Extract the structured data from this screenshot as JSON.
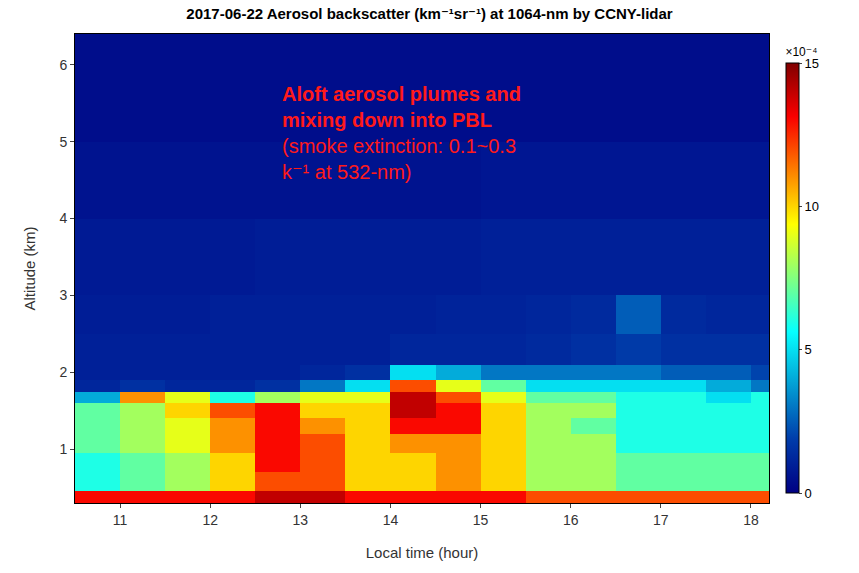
{
  "chart_data": {
    "type": "heatmap",
    "title": "2017-06-22 Aerosol backscatter (km⁻¹sr⁻¹) at 1064-nm by CCNY-lidar",
    "x_label": "Local time (hour)",
    "y_label": "Altitude (km)",
    "annotations": [
      [
        "Aloft aerosol plumes and",
        "mixing down into PBL"
      ],
      [
        "(smoke extinction: 0.1~0.3",
        "k⁻¹ at 532-nm)"
      ]
    ],
    "colorbar_label": "×10⁻⁴",
    "color": "Jet",
    "grid": false,
    "x": [
      10.5,
      11,
      11.5,
      12,
      12.5,
      13,
      13.5,
      14,
      14.5,
      15,
      15.5,
      16,
      16.5,
      17,
      17.5,
      18,
      18.2
    ],
    "y": [
      0.3,
      0.45,
      0.7,
      0.95,
      1.2,
      1.4,
      1.6,
      1.75,
      1.9,
      2.1,
      2.5,
      3,
      4,
      5,
      6.4
    ],
    "z": [
      [
        13,
        13,
        13,
        13,
        14,
        14,
        13,
        13,
        13,
        13,
        12,
        12,
        12,
        12,
        12,
        12
      ],
      [
        6,
        7,
        8,
        10,
        12,
        12,
        10,
        10,
        11,
        10,
        8,
        8,
        7,
        7,
        7,
        7
      ],
      [
        6,
        7,
        8,
        10,
        13,
        12,
        10,
        10,
        11,
        10,
        8,
        8,
        7,
        7,
        7,
        7
      ],
      [
        7,
        8,
        9,
        11,
        13,
        12,
        10,
        11,
        11,
        10,
        8,
        8,
        6,
        6,
        6,
        6
      ],
      [
        7,
        8,
        9,
        11,
        13,
        11,
        10,
        13,
        13,
        10,
        8,
        7,
        6,
        6,
        6,
        6
      ],
      [
        7,
        8,
        10,
        12,
        13,
        10,
        10,
        14,
        13,
        10,
        8,
        8,
        6,
        6,
        6,
        6
      ],
      [
        4,
        11,
        9,
        6,
        8,
        9,
        9,
        14,
        12,
        9,
        7,
        7,
        6,
        6,
        5,
        6
      ],
      [
        1.2,
        1.5,
        1.2,
        1.2,
        1.5,
        3,
        5,
        12,
        9,
        7,
        5,
        5,
        5,
        5,
        4,
        3
      ],
      [
        1,
        1,
        1,
        1,
        1,
        1.2,
        1.5,
        5,
        4,
        3,
        3,
        3,
        3,
        2.5,
        2.5,
        2
      ],
      [
        1,
        1,
        1,
        1,
        1,
        1,
        1,
        1.2,
        1.2,
        1.2,
        1.3,
        1.5,
        1.8,
        1.5,
        1.5,
        1.5
      ],
      [
        0.9,
        0.9,
        0.9,
        1,
        1,
        1,
        1,
        1,
        1.1,
        1.1,
        1.2,
        1.3,
        2.5,
        1.3,
        1.2,
        1.2
      ],
      [
        0.8,
        0.8,
        0.8,
        0.8,
        0.9,
        0.9,
        0.9,
        0.9,
        0.9,
        1,
        1,
        1,
        1,
        1,
        1,
        1
      ],
      [
        0.6,
        0.6,
        0.6,
        0.6,
        0.6,
        0.6,
        0.6,
        0.6,
        0.6,
        0.7,
        0.7,
        0.7,
        0.7,
        0.7,
        0.7,
        0.7
      ],
      [
        0.4,
        0.4,
        0.4,
        0.4,
        0.4,
        0.4,
        0.4,
        0.4,
        0.4,
        0.4,
        0.4,
        0.4,
        0.4,
        0.4,
        0.4,
        0.4
      ]
    ],
    "xlim": [
      10.5,
      18.2
    ],
    "xticks": [
      11,
      12,
      13,
      14,
      15,
      16,
      17,
      18
    ],
    "ylim": [
      0.3,
      6.4
    ],
    "yticks": [
      1,
      2,
      3,
      4,
      5,
      6
    ],
    "zlim": [
      0,
      15
    ],
    "zticks": [
      0,
      5,
      10,
      15
    ]
  }
}
